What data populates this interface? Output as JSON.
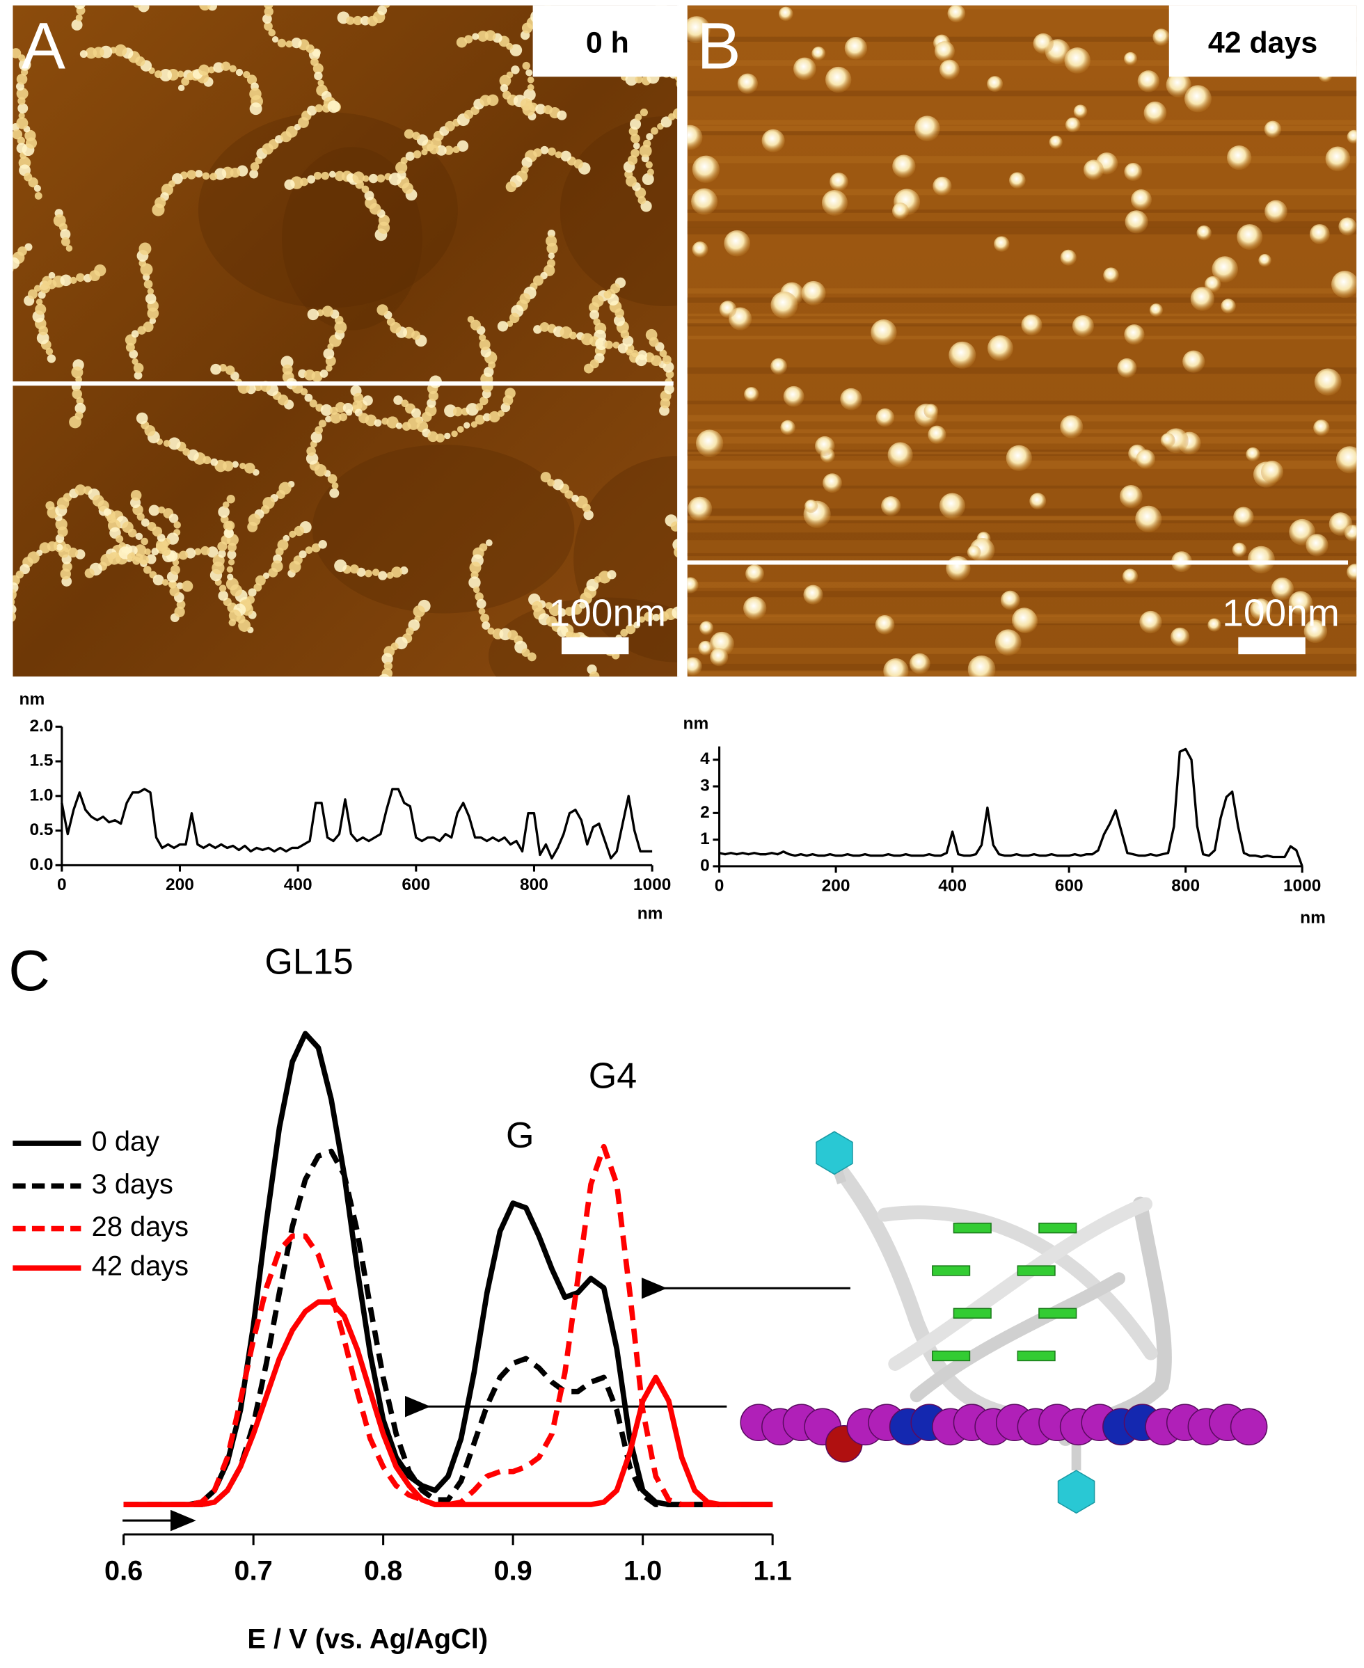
{
  "panels": [
    {
      "label": "A",
      "time": "0 h",
      "scale_bar": "100nm"
    },
    {
      "label": "B",
      "time": "42 days",
      "scale_bar": "100nm"
    },
    {
      "label": "C"
    }
  ],
  "chart_data": [
    {
      "type": "line",
      "y_label": "nm",
      "x_label": "nm",
      "x": [
        0,
        10,
        20,
        30,
        40,
        50,
        60,
        70,
        80,
        90,
        100,
        110,
        120,
        130,
        140,
        150,
        160,
        170,
        180,
        190,
        200,
        210,
        220,
        230,
        240,
        250,
        260,
        270,
        280,
        290,
        300,
        310,
        320,
        330,
        340,
        350,
        360,
        370,
        380,
        390,
        400,
        410,
        420,
        430,
        440,
        450,
        460,
        470,
        480,
        490,
        500,
        510,
        520,
        530,
        540,
        550,
        560,
        570,
        580,
        590,
        600,
        610,
        620,
        630,
        640,
        650,
        660,
        670,
        680,
        690,
        700,
        710,
        720,
        730,
        740,
        750,
        760,
        770,
        780,
        790,
        800,
        810,
        820,
        830,
        840,
        850,
        860,
        870,
        880,
        890,
        900,
        910,
        920,
        930,
        940,
        950,
        960,
        970,
        980,
        990,
        1000
      ],
      "series": [
        {
          "color": "#000000",
          "values": [
            0.9,
            0.45,
            0.8,
            1.05,
            0.8,
            0.7,
            0.65,
            0.7,
            0.62,
            0.65,
            0.6,
            0.9,
            1.05,
            1.05,
            1.1,
            1.05,
            0.4,
            0.25,
            0.3,
            0.25,
            0.3,
            0.3,
            0.75,
            0.3,
            0.25,
            0.3,
            0.25,
            0.3,
            0.25,
            0.28,
            0.22,
            0.28,
            0.2,
            0.25,
            0.22,
            0.25,
            0.2,
            0.25,
            0.2,
            0.25,
            0.25,
            0.3,
            0.35,
            0.9,
            0.9,
            0.4,
            0.35,
            0.45,
            0.95,
            0.45,
            0.35,
            0.4,
            0.35,
            0.4,
            0.45,
            0.8,
            1.1,
            1.1,
            0.9,
            0.85,
            0.4,
            0.35,
            0.4,
            0.4,
            0.35,
            0.45,
            0.4,
            0.75,
            0.9,
            0.7,
            0.4,
            0.4,
            0.35,
            0.4,
            0.35,
            0.4,
            0.3,
            0.35,
            0.2,
            0.75,
            0.75,
            0.15,
            0.3,
            0.1,
            0.25,
            0.45,
            0.75,
            0.8,
            0.65,
            0.3,
            0.55,
            0.6,
            0.35,
            0.1,
            0.2,
            0.6,
            1.0,
            0.5,
            0.2,
            0.2,
            0.2
          ]
        }
      ],
      "xlim": [
        0,
        1000
      ],
      "xticks": [
        0,
        200,
        400,
        600,
        800,
        1000
      ],
      "ylim": [
        0,
        2.0
      ],
      "yticks": [
        {
          "value": 0,
          "label": "0.0"
        },
        0.5,
        {
          "value": 1.0,
          "label": "1.0"
        },
        1.5,
        {
          "value": 2.0,
          "label": "2.0"
        }
      ]
    },
    {
      "type": "line",
      "y_label": "nm",
      "x_label": "nm",
      "x": [
        0,
        10,
        20,
        30,
        40,
        50,
        60,
        70,
        80,
        90,
        100,
        110,
        120,
        130,
        140,
        150,
        160,
        170,
        180,
        190,
        200,
        210,
        220,
        230,
        240,
        250,
        260,
        270,
        280,
        290,
        300,
        310,
        320,
        330,
        340,
        350,
        360,
        370,
        380,
        390,
        400,
        410,
        420,
        430,
        440,
        450,
        460,
        470,
        480,
        490,
        500,
        510,
        520,
        530,
        540,
        550,
        560,
        570,
        580,
        590,
        600,
        610,
        620,
        630,
        640,
        650,
        660,
        670,
        680,
        690,
        700,
        710,
        720,
        730,
        740,
        750,
        760,
        770,
        780,
        790,
        800,
        810,
        820,
        830,
        840,
        850,
        860,
        870,
        880,
        890,
        900,
        910,
        920,
        930,
        940,
        950,
        960,
        970,
        980,
        990,
        1000
      ],
      "series": [
        {
          "color": "#000000",
          "values": [
            0.5,
            0.45,
            0.5,
            0.45,
            0.5,
            0.45,
            0.5,
            0.45,
            0.45,
            0.5,
            0.45,
            0.55,
            0.45,
            0.4,
            0.45,
            0.4,
            0.45,
            0.4,
            0.4,
            0.45,
            0.4,
            0.4,
            0.45,
            0.4,
            0.4,
            0.45,
            0.4,
            0.4,
            0.4,
            0.45,
            0.4,
            0.4,
            0.45,
            0.4,
            0.4,
            0.4,
            0.45,
            0.4,
            0.4,
            0.5,
            1.3,
            0.45,
            0.4,
            0.4,
            0.45,
            0.8,
            2.2,
            0.8,
            0.45,
            0.4,
            0.4,
            0.45,
            0.4,
            0.4,
            0.45,
            0.4,
            0.4,
            0.45,
            0.4,
            0.4,
            0.4,
            0.45,
            0.4,
            0.45,
            0.45,
            0.6,
            1.2,
            1.6,
            2.1,
            1.3,
            0.5,
            0.45,
            0.4,
            0.4,
            0.45,
            0.4,
            0.45,
            0.5,
            1.5,
            4.3,
            4.4,
            4.0,
            1.5,
            0.45,
            0.4,
            0.6,
            1.8,
            2.6,
            2.8,
            1.5,
            0.5,
            0.4,
            0.4,
            0.35,
            0.4,
            0.35,
            0.35,
            0.35,
            0.75,
            0.6,
            0.0
          ]
        }
      ],
      "xlim": [
        0,
        1000
      ],
      "xticks": [
        0,
        200,
        400,
        600,
        800,
        1000
      ],
      "ylim": [
        0,
        4.5
      ],
      "yticks": [
        0,
        1,
        2,
        3,
        4
      ]
    },
    {
      "type": "line",
      "x_label": "E / V (vs. Ag/AgCl)",
      "annotations": [
        "GL15",
        "G",
        "G4"
      ],
      "x": [
        0.6,
        0.61,
        0.62,
        0.63,
        0.64,
        0.65,
        0.66,
        0.67,
        0.68,
        0.69,
        0.7,
        0.71,
        0.72,
        0.73,
        0.74,
        0.75,
        0.76,
        0.77,
        0.78,
        0.79,
        0.8,
        0.81,
        0.82,
        0.83,
        0.84,
        0.85,
        0.86,
        0.87,
        0.88,
        0.89,
        0.9,
        0.91,
        0.92,
        0.93,
        0.94,
        0.95,
        0.96,
        0.97,
        0.98,
        0.99,
        1.0,
        1.01,
        1.02,
        1.03,
        1.04,
        1.05,
        1.06,
        1.07,
        1.08,
        1.09,
        1.1
      ],
      "series": [
        {
          "name": "0 day",
          "color": "#000000",
          "dashed": false,
          "values": [
            0,
            0,
            0,
            0,
            0,
            0,
            0.5,
            3,
            9,
            20,
            38,
            60,
            80,
            94,
            100,
            97,
            86,
            70,
            50,
            32,
            18,
            10,
            6,
            4,
            3,
            6,
            14,
            28,
            45,
            58,
            64,
            63,
            57,
            50,
            44,
            45,
            48,
            46,
            33,
            14,
            3,
            0.5,
            0,
            0,
            0,
            0,
            0,
            0,
            0,
            0,
            0
          ]
        },
        {
          "name": "3 days",
          "color": "#000000",
          "dashed": true,
          "values": [
            0,
            0,
            0,
            0,
            0,
            0,
            0,
            0.5,
            3,
            8,
            17,
            30,
            45,
            59,
            69,
            74,
            75,
            70,
            58,
            42,
            27,
            15,
            7,
            3,
            1,
            1,
            5,
            13,
            21,
            27,
            30,
            31,
            29,
            26,
            24,
            24,
            26,
            27,
            20,
            8,
            2,
            0,
            0,
            0,
            0,
            0,
            0,
            0,
            0,
            0,
            0
          ]
        },
        {
          "name": "28 days",
          "color": "#ff0000",
          "dashed": true,
          "values": [
            0,
            0,
            0,
            0,
            0,
            0,
            0.5,
            3,
            10,
            22,
            35,
            46,
            54,
            57,
            57,
            53,
            45,
            35,
            24,
            14,
            8,
            4,
            2,
            1,
            0,
            0,
            0.5,
            3,
            6,
            7,
            7,
            8,
            10,
            15,
            28,
            48,
            68,
            76,
            68,
            45,
            20,
            6,
            1,
            0,
            0,
            0,
            0,
            0,
            0,
            0,
            0
          ]
        },
        {
          "name": "42 days",
          "color": "#ff0000",
          "dashed": false,
          "values": [
            0,
            0,
            0,
            0,
            0,
            0,
            0,
            0.5,
            3,
            8,
            15,
            23,
            31,
            37,
            41,
            43,
            43,
            40,
            33,
            24,
            15,
            8,
            4,
            1,
            0,
            0,
            0,
            0,
            0,
            0,
            0,
            0,
            0,
            0,
            0,
            0,
            0,
            0.5,
            3,
            11,
            22,
            27,
            22,
            10,
            3,
            0.5,
            0,
            0,
            0,
            0,
            0
          ]
        }
      ],
      "xlim": [
        0.6,
        1.1
      ],
      "xticks": [
        0.6,
        0.7,
        0.8,
        0.9,
        {
          "value": 1.0,
          "label": "1.0"
        },
        1.1
      ],
      "ylim": [
        0,
        100
      ]
    }
  ]
}
